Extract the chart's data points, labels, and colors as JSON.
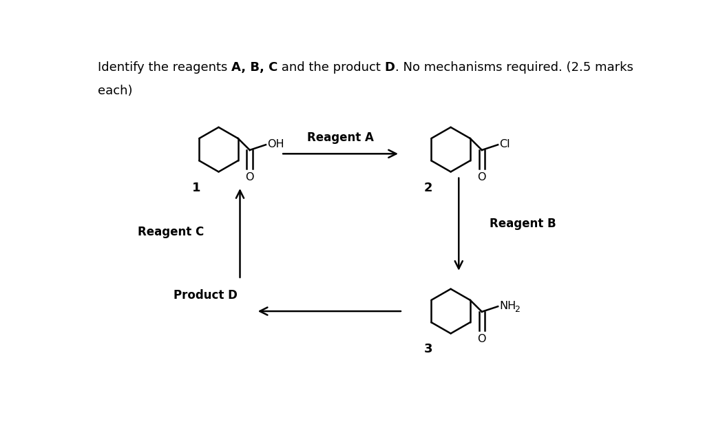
{
  "background_color": "#ffffff",
  "text_color": "#000000",
  "reagent_a_label": "Reagent A",
  "reagent_b_label": "Reagent B",
  "reagent_c_label": "Reagent C",
  "product_d_label": "Product D",
  "compound1_label": "1",
  "compound2_label": "2",
  "compound3_label": "3",
  "mol1_oh": "OH",
  "mol1_o": "O",
  "mol2_cl": "Cl",
  "mol2_o": "O",
  "mol3_nh2": "NH",
  "mol3_nh2_sub": "2",
  "mol3_o": "O",
  "figwidth": 10.21,
  "figheight": 6.42,
  "dpi": 100
}
